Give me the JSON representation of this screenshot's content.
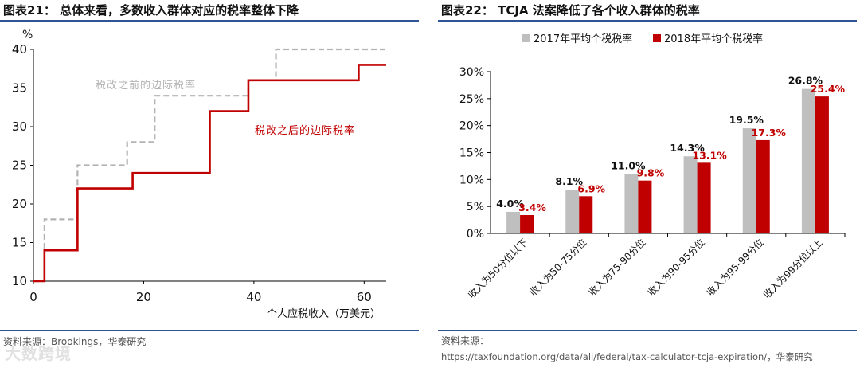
{
  "colors": {
    "before": "#b3b3b3",
    "after": "#c00000",
    "bar2017": "#bfbfbf",
    "bar2018": "#c00000",
    "rule": "#2f5597"
  },
  "left": {
    "title": "图表21：  总体来看，多数收入群体对应的税率整体下降",
    "source": "资料来源：Brookings，华泰研究",
    "watermark": "大数跨境",
    "chart_data": {
      "type": "line",
      "ylabel": "%",
      "xlabel": "个人应税收入（万美元）",
      "xlim": [
        0,
        64
      ],
      "ylim": [
        10,
        40
      ],
      "xticks": [
        "0",
        "20",
        "40",
        "60"
      ],
      "yticks": [
        "10",
        "15",
        "20",
        "25",
        "30",
        "35",
        "40"
      ],
      "series": [
        {
          "name": "税改之前的边际税率",
          "style": "dashed",
          "x": [
            0,
            2,
            2,
            8,
            8,
            17,
            17,
            22,
            22,
            39,
            39,
            44,
            44,
            64
          ],
          "y": [
            10,
            10,
            18,
            18,
            25,
            25,
            28,
            28,
            34,
            34,
            36,
            36,
            40,
            40
          ]
        },
        {
          "name": "税改之后的边际税率",
          "style": "solid",
          "x": [
            0,
            2,
            2,
            8,
            8,
            18,
            18,
            32,
            32,
            39,
            39,
            59,
            59,
            64
          ],
          "y": [
            10,
            10,
            14,
            14,
            22,
            22,
            24,
            24,
            32,
            32,
            36,
            36,
            38,
            38
          ]
        }
      ],
      "annotations": [
        "税改之前的边际税率",
        "税改之后的边际税率"
      ]
    }
  },
  "right": {
    "title": "图表22：  TCJA 法案降低了各个收入群体的税率",
    "source_label": "资料来源：",
    "source_url": "https://taxfoundation.org/data/all/federal/tax-calculator-tcja-expiration/，华泰研究",
    "chart_data": {
      "type": "bar",
      "categories": [
        "收入为50分位以下",
        "收入为50-75分位",
        "收入为75-90分位",
        "收入为90-95分位",
        "收入为95-99分位",
        "收入为99分位以上"
      ],
      "series": [
        {
          "name": "2017年平均个税税率",
          "values": [
            4.0,
            8.1,
            11.0,
            14.3,
            19.5,
            26.8
          ],
          "labels": [
            "4.0%",
            "8.1%",
            "11.0%",
            "14.3%",
            "19.5%",
            "26.8%"
          ]
        },
        {
          "name": "2018年平均个税税率",
          "values": [
            3.4,
            6.9,
            9.8,
            13.1,
            17.3,
            25.4
          ],
          "labels": [
            "3.4%",
            "6.9%",
            "9.8%",
            "13.1%",
            "17.3%",
            "25.4%"
          ]
        }
      ],
      "ylim": [
        0,
        30
      ],
      "yticks": [
        "0%",
        "5%",
        "10%",
        "15%",
        "20%",
        "25%",
        "30%"
      ],
      "legend": "top"
    }
  }
}
